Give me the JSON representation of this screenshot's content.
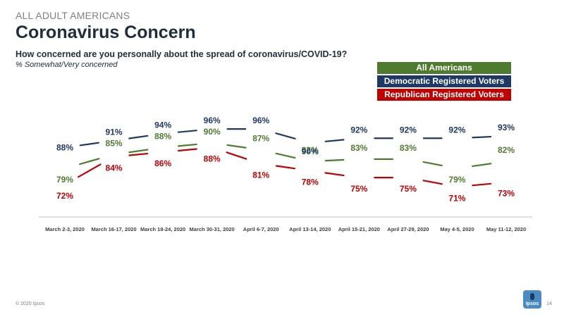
{
  "header": {
    "kicker": "ALL ADULT AMERICANS",
    "title": "Coronavirus Concern",
    "question": "How concerned are you personally about the spread of coronavirus/COVID-19?",
    "subtitle": "% Somewhat/Very concerned"
  },
  "footer": {
    "copyright": "© 2020 Ipsos",
    "logo": "Ipsos",
    "page": "14"
  },
  "chart_data": {
    "type": "line",
    "title": "",
    "xlabel": "",
    "ylabel": "",
    "categories": [
      "March 2-3, 2020",
      "March 16-17, 2020",
      "March 18-24, 2020",
      "March 30-31, 2020",
      "April 6-7, 2020",
      "April 13-14, 2020",
      "April 15-21, 2020",
      "April 27-29, 2020",
      "May 4-5, 2020",
      "May 11-12, 2020"
    ],
    "ylim": [
      65,
      100
    ],
    "grid": false,
    "legend_position": "top-right",
    "series": [
      {
        "name": "All Americans",
        "color": "#4e7b2f",
        "values": [
          79,
          85,
          88,
          90,
          87,
          82,
          83,
          83,
          79,
          82
        ],
        "labels": [
          "79%",
          "85%",
          "88%",
          "90%",
          "87%",
          "82%",
          "83%",
          "83%",
          "79%",
          "82%"
        ]
      },
      {
        "name": "Democratic Registered Voters",
        "color": "#1f3864",
        "values": [
          88,
          91,
          94,
          96,
          96,
          90,
          92,
          92,
          92,
          93
        ],
        "labels": [
          "88%",
          "91%",
          "94%",
          "96%",
          "96%",
          "90%",
          "92%",
          "92%",
          "92%",
          "93%"
        ]
      },
      {
        "name": "Republican Registered Voters",
        "color": "#c00000",
        "values": [
          72,
          84,
          86,
          88,
          81,
          78,
          75,
          75,
          71,
          73
        ],
        "labels": [
          "72%",
          "84%",
          "86%",
          "88%",
          "81%",
          "78%",
          "75%",
          "75%",
          "71%",
          "73%"
        ]
      }
    ]
  }
}
